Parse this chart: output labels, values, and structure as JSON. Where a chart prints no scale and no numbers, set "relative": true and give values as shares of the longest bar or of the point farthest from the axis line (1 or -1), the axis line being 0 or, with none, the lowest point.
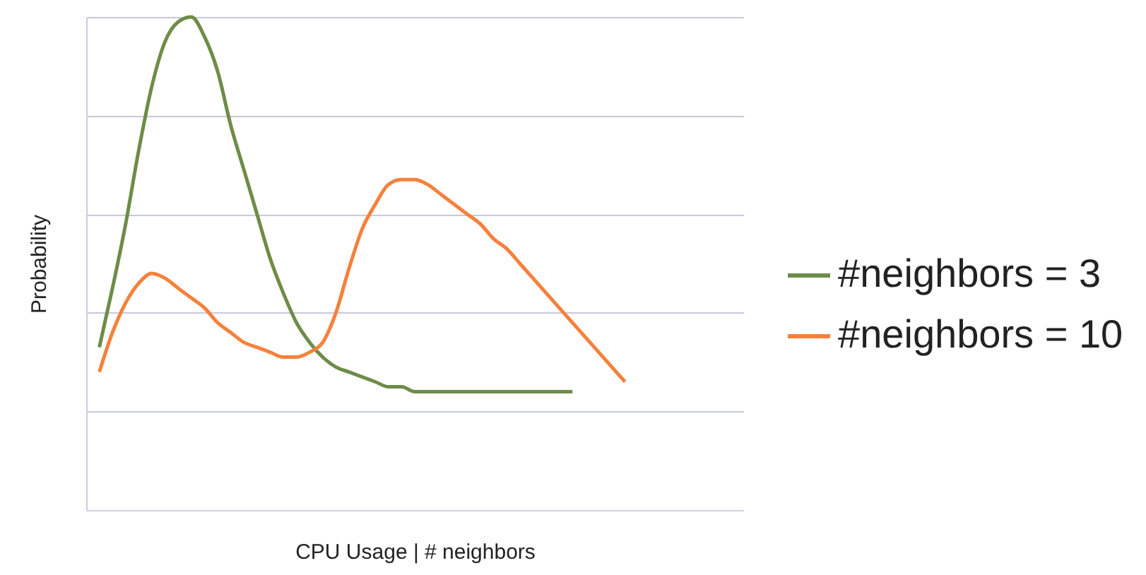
{
  "chart_data": {
    "type": "line",
    "xlabel": "CPU Usage | # neighbors",
    "ylabel": "Probability",
    "relative": true,
    "grid": "y",
    "legend": "right",
    "tick_labels": false,
    "marker": "none",
    "line_style": "solid",
    "categories": [
      null,
      null,
      null,
      null,
      null,
      null,
      null,
      null,
      null,
      null,
      null,
      null,
      null,
      null,
      null,
      null,
      null,
      null,
      null,
      null,
      null,
      null,
      null,
      null,
      null,
      null,
      null,
      null,
      null,
      null,
      null,
      null,
      null,
      null,
      null,
      null,
      null,
      null,
      null,
      null,
      null,
      null,
      null,
      null,
      null,
      null,
      null,
      null,
      null,
      null,
      null
    ],
    "series": [
      {
        "name": "#neighbors = 3",
        "color": "#6e8c48",
        "values": [
          null,
          0.33,
          0.45,
          0.58,
          0.73,
          0.86,
          0.95,
          0.99,
          1,
          0.96,
          0.89,
          0.78,
          0.69,
          0.6,
          0.51,
          0.44,
          0.38,
          0.34,
          0.31,
          0.29,
          0.28,
          0.27,
          0.26,
          0.25,
          0.25,
          0.24,
          0.24,
          0.24,
          0.24,
          0.24,
          0.24,
          0.24,
          0.24,
          0.24,
          0.24,
          0.24,
          0.24,
          0.24,
          null,
          null,
          null,
          null,
          null,
          null,
          null,
          null,
          null,
          null,
          null,
          null,
          null
        ]
      },
      {
        "name": "#neighbors = 10",
        "color": "#f5813c",
        "values": [
          null,
          0.28,
          0.36,
          0.42,
          0.46,
          0.48,
          0.47,
          0.45,
          0.43,
          0.41,
          0.38,
          0.36,
          0.34,
          0.33,
          0.32,
          0.31,
          0.31,
          0.32,
          0.34,
          0.4,
          0.49,
          0.57,
          0.62,
          0.66,
          0.67,
          0.67,
          0.66,
          0.64,
          0.62,
          0.6,
          0.58,
          0.55,
          0.53,
          0.5,
          0.47,
          0.44,
          0.41,
          0.38,
          0.35,
          0.32,
          0.29,
          0.26,
          null,
          null,
          null,
          null,
          null,
          null,
          null,
          null,
          null
        ]
      }
    ]
  }
}
